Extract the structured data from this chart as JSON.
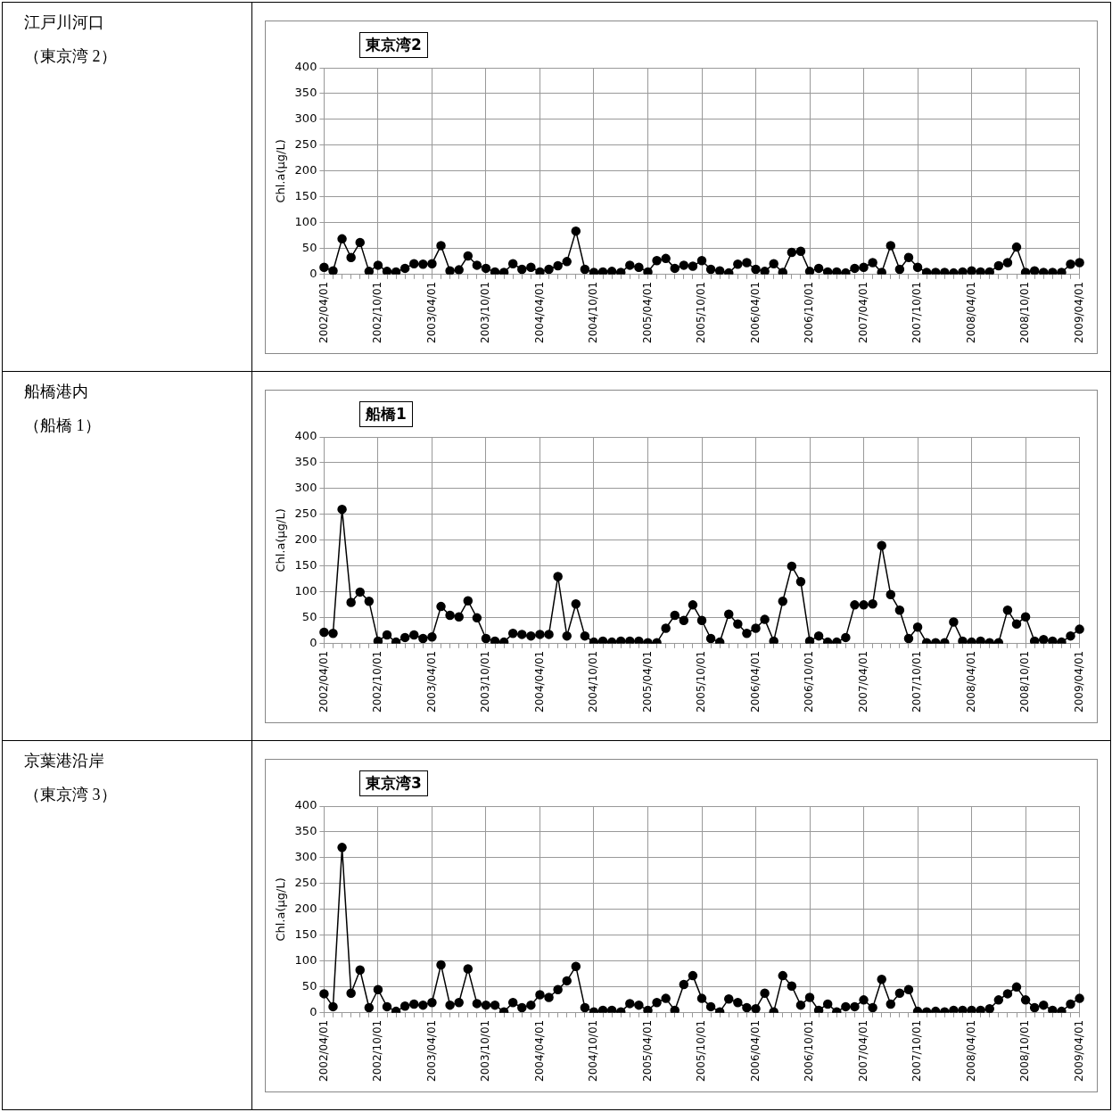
{
  "chart_data": [
    {
      "type": "line",
      "title": "東京湾2",
      "annotations": [
        "江戸川河口",
        "（東京湾 2）"
      ],
      "ylabel": "Chl.a(µg/L)",
      "color": "#000000",
      "marker": "circle",
      "line_style": "solid",
      "grid": true,
      "ylim": [
        0,
        400
      ],
      "yticks": [
        0,
        50,
        100,
        150,
        200,
        250,
        300,
        350,
        400
      ],
      "categories": [
        "2002/04/01",
        null,
        null,
        null,
        null,
        null,
        "2002/10/01",
        null,
        null,
        null,
        null,
        null,
        "2003/04/01",
        null,
        null,
        null,
        null,
        null,
        "2003/10/01",
        null,
        null,
        null,
        null,
        null,
        "2004/04/01",
        null,
        null,
        null,
        null,
        null,
        "2004/10/01",
        null,
        null,
        null,
        null,
        null,
        "2005/04/01",
        null,
        null,
        null,
        null,
        null,
        "2005/10/01",
        null,
        null,
        null,
        null,
        null,
        "2006/04/01",
        null,
        null,
        null,
        null,
        null,
        "2006/10/01",
        null,
        null,
        null,
        null,
        null,
        "2007/04/01",
        null,
        null,
        null,
        null,
        null,
        "2007/10/01",
        null,
        null,
        null,
        null,
        null,
        "2008/04/01",
        null,
        null,
        null,
        null,
        null,
        "2008/10/01",
        null,
        null,
        null,
        null,
        null,
        "2009/04/01"
      ],
      "values": [
        14,
        7,
        69,
        33,
        62,
        6,
        18,
        6,
        5,
        12,
        21,
        20,
        21,
        56,
        7,
        9,
        36,
        18,
        12,
        5,
        4,
        21,
        10,
        14,
        5,
        10,
        17,
        25,
        84,
        10,
        4,
        5,
        6,
        4,
        18,
        14,
        5,
        27,
        31,
        12,
        18,
        16,
        27,
        10,
        7,
        3,
        20,
        23,
        10,
        6,
        21,
        4,
        43,
        45,
        6,
        12,
        5,
        5,
        3,
        12,
        14,
        23,
        4,
        56,
        10,
        33,
        14,
        4,
        4,
        4,
        3,
        5,
        7,
        5,
        5,
        17,
        23,
        53,
        4,
        7,
        4,
        4,
        4,
        20,
        23
      ]
    },
    {
      "type": "line",
      "title": "船橋1",
      "annotations": [
        "船橋港内",
        "（船橋 1）"
      ],
      "ylabel": "Chl.a(µg/L)",
      "color": "#000000",
      "marker": "circle",
      "line_style": "solid",
      "grid": true,
      "ylim": [
        0,
        400
      ],
      "yticks": [
        0,
        50,
        100,
        150,
        200,
        250,
        300,
        350,
        400
      ],
      "categories": [
        "2002/04/01",
        null,
        null,
        null,
        null,
        null,
        "2002/10/01",
        null,
        null,
        null,
        null,
        null,
        "2003/04/01",
        null,
        null,
        null,
        null,
        null,
        "2003/10/01",
        null,
        null,
        null,
        null,
        null,
        "2004/04/01",
        null,
        null,
        null,
        null,
        null,
        "2004/10/01",
        null,
        null,
        null,
        null,
        null,
        "2005/04/01",
        null,
        null,
        null,
        null,
        null,
        "2005/10/01",
        null,
        null,
        null,
        null,
        null,
        "2006/04/01",
        null,
        null,
        null,
        null,
        null,
        "2006/10/01",
        null,
        null,
        null,
        null,
        null,
        "2007/04/01",
        null,
        null,
        null,
        null,
        null,
        "2007/10/01",
        null,
        null,
        null,
        null,
        null,
        "2008/04/01",
        null,
        null,
        null,
        null,
        null,
        "2008/10/01",
        null,
        null,
        null,
        null,
        null,
        "2009/04/01"
      ],
      "values": [
        22,
        20,
        260,
        80,
        100,
        82,
        5,
        17,
        3,
        12,
        17,
        10,
        13,
        72,
        55,
        52,
        83,
        50,
        10,
        5,
        3,
        20,
        18,
        15,
        18,
        18,
        130,
        15,
        77,
        15,
        3,
        5,
        3,
        5,
        5,
        5,
        2,
        2,
        30,
        55,
        45,
        75,
        45,
        10,
        3,
        57,
        38,
        20,
        30,
        47,
        5,
        82,
        150,
        120,
        5,
        15,
        3,
        3,
        12,
        75,
        75,
        77,
        190,
        95,
        65,
        10,
        32,
        2,
        2,
        2,
        42,
        5,
        3,
        5,
        2,
        2,
        65,
        38,
        52,
        5,
        8,
        5,
        3,
        15,
        28
      ]
    },
    {
      "type": "line",
      "title": "東京湾3",
      "annotations": [
        "京葉港沿岸",
        "（東京湾 3）"
      ],
      "ylabel": "Chl.a(µg/L)",
      "color": "#000000",
      "marker": "circle",
      "line_style": "solid",
      "grid": true,
      "ylim": [
        0,
        400
      ],
      "yticks": [
        0,
        50,
        100,
        150,
        200,
        250,
        300,
        350,
        400
      ],
      "categories": [
        "2002/04/01",
        null,
        null,
        null,
        null,
        null,
        "2002/10/01",
        null,
        null,
        null,
        null,
        null,
        "2003/04/01",
        null,
        null,
        null,
        null,
        null,
        "2003/10/01",
        null,
        null,
        null,
        null,
        null,
        "2004/04/01",
        null,
        null,
        null,
        null,
        null,
        "2004/10/01",
        null,
        null,
        null,
        null,
        null,
        "2005/04/01",
        null,
        null,
        null,
        null,
        null,
        "2005/10/01",
        null,
        null,
        null,
        null,
        null,
        "2006/04/01",
        null,
        null,
        null,
        null,
        null,
        "2006/10/01",
        null,
        null,
        null,
        null,
        null,
        "2007/04/01",
        null,
        null,
        null,
        null,
        null,
        "2007/10/01",
        null,
        null,
        null,
        null,
        null,
        "2008/04/01",
        null,
        null,
        null,
        null,
        null,
        "2008/10/01",
        null,
        null,
        null,
        null,
        null,
        "2009/04/01"
      ],
      "values": [
        37,
        12,
        320,
        38,
        83,
        10,
        45,
        12,
        3,
        13,
        17,
        15,
        20,
        93,
        15,
        20,
        85,
        18,
        15,
        15,
        2,
        20,
        10,
        15,
        35,
        30,
        45,
        62,
        90,
        10,
        2,
        5,
        5,
        2,
        18,
        15,
        5,
        20,
        28,
        5,
        55,
        72,
        28,
        12,
        2,
        27,
        20,
        10,
        8,
        38,
        2,
        72,
        52,
        15,
        30,
        5,
        17,
        2,
        12,
        12,
        25,
        10,
        65,
        17,
        38,
        45,
        3,
        2,
        3,
        2,
        5,
        5,
        5,
        5,
        8,
        25,
        37,
        50,
        25,
        10,
        15,
        5,
        3,
        17,
        28
      ]
    }
  ]
}
